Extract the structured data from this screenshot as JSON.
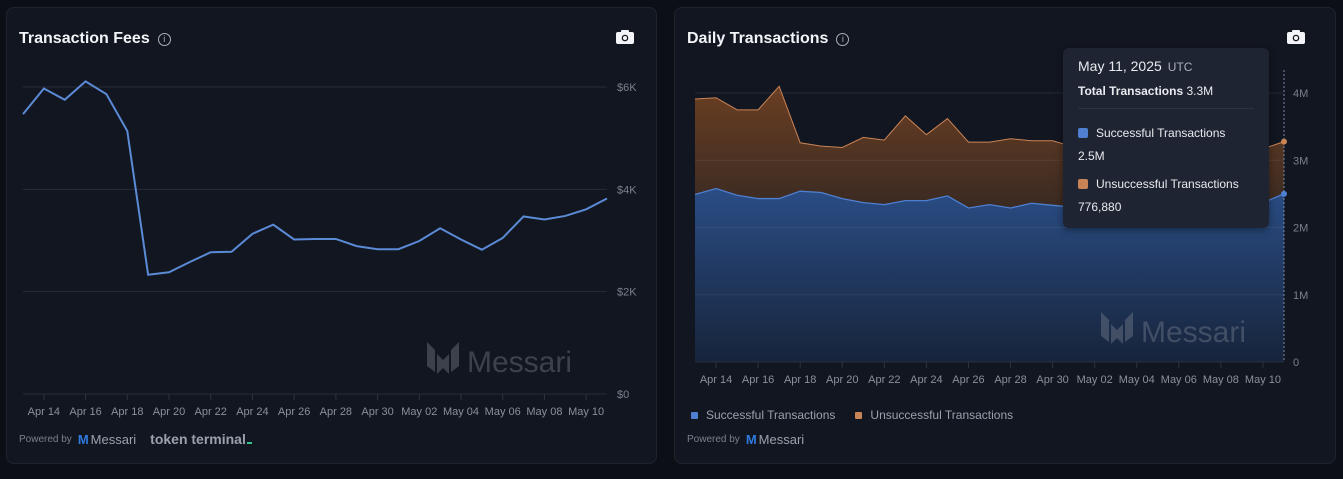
{
  "left_panel": {
    "title": "Transaction Fees",
    "powered_by": "Powered by",
    "messari_logo": "Messari",
    "partner_logo": "token terminal"
  },
  "right_panel": {
    "title": "Daily Transactions",
    "powered_by": "Powered by",
    "messari_logo": "Messari",
    "tooltip": {
      "date": "May 11, 2025",
      "tz": "UTC",
      "total_label": "Total Transactions",
      "total_value": "3.3M",
      "series": [
        {
          "label": "Successful Transactions",
          "value": "2.5M"
        },
        {
          "label": "Unsuccessful Transactions",
          "value": "776,880"
        }
      ]
    }
  },
  "watermark": "Messari",
  "colors": {
    "fees_line": "#5b8ad6",
    "successful": "#4f7fd1",
    "unsuccessful": "#c98456",
    "background": "#121620"
  },
  "chart_data": [
    {
      "type": "line",
      "title": "Transaction Fees",
      "x": [
        "Apr 13",
        "Apr 14",
        "Apr 15",
        "Apr 16",
        "Apr 17",
        "Apr 18",
        "Apr 19",
        "Apr 20",
        "Apr 21",
        "Apr 22",
        "Apr 23",
        "Apr 24",
        "Apr 25",
        "Apr 26",
        "Apr 27",
        "Apr 28",
        "Apr 29",
        "Apr 30",
        "May 01",
        "May 02",
        "May 03",
        "May 04",
        "May 05",
        "May 06",
        "May 07",
        "May 08",
        "May 09",
        "May 10",
        "May 11"
      ],
      "values": [
        5470,
        5970,
        5750,
        6110,
        5860,
        5140,
        2330,
        2380,
        2580,
        2770,
        2780,
        3130,
        3310,
        3020,
        3030,
        3030,
        2890,
        2830,
        2830,
        2990,
        3240,
        3020,
        2820,
        3050,
        3470,
        3410,
        3480,
        3610,
        3820
      ],
      "ylim": [
        0,
        6000
      ],
      "yticks": [
        "$0",
        "$2K",
        "$4K",
        "$6K"
      ],
      "xticks": [
        "Apr 14",
        "Apr 16",
        "Apr 18",
        "Apr 20",
        "Apr 22",
        "Apr 24",
        "Apr 26",
        "Apr 28",
        "Apr 30",
        "May 02",
        "May 04",
        "May 06",
        "May 08",
        "May 10"
      ],
      "grid": true,
      "legend": "none"
    },
    {
      "type": "area",
      "stacked": true,
      "title": "Daily Transactions",
      "x": [
        "Apr 13",
        "Apr 14",
        "Apr 15",
        "Apr 16",
        "Apr 17",
        "Apr 18",
        "Apr 19",
        "Apr 20",
        "Apr 21",
        "Apr 22",
        "Apr 23",
        "Apr 24",
        "Apr 25",
        "Apr 26",
        "Apr 27",
        "Apr 28",
        "Apr 29",
        "Apr 30",
        "May 01",
        "May 02",
        "May 03",
        "May 04",
        "May 05",
        "May 06",
        "May 07",
        "May 08",
        "May 09",
        "May 10",
        "May 11"
      ],
      "series": [
        {
          "name": "Successful Transactions",
          "values": [
            2.49,
            2.58,
            2.48,
            2.43,
            2.43,
            2.54,
            2.52,
            2.43,
            2.37,
            2.34,
            2.4,
            2.4,
            2.47,
            2.29,
            2.34,
            2.29,
            2.36,
            2.33,
            2.3,
            2.32,
            2.3,
            2.33,
            2.31,
            2.34,
            2.32,
            2.35,
            2.36,
            2.37,
            2.5
          ]
        },
        {
          "name": "Unsuccessful Transactions",
          "values": [
            1.42,
            1.35,
            1.27,
            1.32,
            1.67,
            0.72,
            0.69,
            0.76,
            0.97,
            0.96,
            1.26,
            0.98,
            1.15,
            0.98,
            0.93,
            1.03,
            0.93,
            0.96,
            0.9,
            0.92,
            0.88,
            0.85,
            0.89,
            0.9,
            0.86,
            0.83,
            0.82,
            0.8,
            0.77688
          ]
        }
      ],
      "unit": "M",
      "ylim": [
        0,
        4
      ],
      "yticks": [
        "0",
        "1M",
        "2M",
        "3M",
        "4M"
      ],
      "xticks": [
        "Apr 14",
        "Apr 16",
        "Apr 18",
        "Apr 20",
        "Apr 22",
        "Apr 24",
        "Apr 26",
        "Apr 28",
        "Apr 30",
        "May 02",
        "May 04",
        "May 06",
        "May 08",
        "May 10"
      ],
      "grid": true,
      "legend": "bottom-left"
    }
  ]
}
